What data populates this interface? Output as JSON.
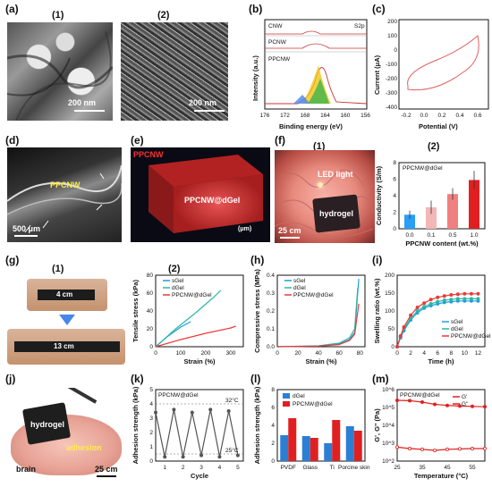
{
  "panels": {
    "a": {
      "label": "(a)",
      "sub1": "(1)",
      "sub2": "(2)",
      "scale1": "200 nm",
      "scale2": "200 nm"
    },
    "b": {
      "label": "(b)",
      "cnw": "CNW",
      "pcnw": "PCNW",
      "ppcnw": "PPCNW",
      "s2p": "S2p",
      "xlabel": "Binding energy (eV)",
      "ylabel": "Intensity (a.u.)",
      "xticks": [
        "176",
        "172",
        "168",
        "164",
        "160",
        "156"
      ]
    },
    "c": {
      "label": "(c)",
      "xlabel": "Potential (V)",
      "ylabel": "Current (μA)",
      "xticks": [
        "-0.2",
        "0.0",
        "0.2",
        "0.4",
        "0.6"
      ],
      "yticks": [
        "200",
        "100",
        "0",
        "-100",
        "-200",
        "-300",
        "-400"
      ]
    },
    "d": {
      "label": "(d)",
      "tag": "PPCNW",
      "scale": "500 μm"
    },
    "e": {
      "label": "(e)",
      "tag": "PPCNW",
      "center": "PPCNW@dGel",
      "axis_ticks": [
        "320",
        "280",
        "240",
        "200",
        "160",
        "120",
        "80",
        "40",
        "0"
      ],
      "unit": "(μm)"
    },
    "f": {
      "label": "(f)",
      "sub1": "(1)",
      "sub2": "(2)",
      "led": "LED light",
      "hydrogel": "hydrogel",
      "scale": "25 cm"
    },
    "g": {
      "label": "(g)",
      "sub1": "(1)",
      "sub2": "(2)",
      "len1": "4 cm",
      "len2": "13 cm"
    },
    "h": {
      "label": "(h)"
    },
    "i": {
      "label": "(i)"
    },
    "j": {
      "label": "(j)",
      "hydrogel": "hydrogel",
      "brain": "brain",
      "adhesion": "adhesion",
      "scale": "25 cm"
    },
    "k": {
      "label": "(k)",
      "tag": "PPCNW@dGel",
      "t1": "32°C",
      "t2": "25°C"
    },
    "l": {
      "label": "(l)"
    },
    "m": {
      "label": "(m)",
      "tag": "PPCNW@dGel"
    }
  },
  "colors": {
    "sGel": "#1f9ce0",
    "dGel": "#2cb7a3",
    "PPCNW@dGel": "#e83b3b",
    "red": "#e02020",
    "blue": "#2a7fd4"
  },
  "chart_data": [
    {
      "id": "f2",
      "type": "bar",
      "title": "PPCNW@dGel",
      "categories": [
        "0.0",
        "0.1",
        "0.5",
        "1.0"
      ],
      "values": [
        1.7,
        2.6,
        4.2,
        5.9
      ],
      "errors": [
        0.5,
        0.8,
        0.7,
        1.1
      ],
      "colors": [
        "#2a9df4",
        "#f4b6b6",
        "#f08080",
        "#e02020"
      ],
      "xlabel": "PPCNW content (wt.%)",
      "ylabel": "Conductivity (S/m)",
      "ylim": [
        0,
        8
      ],
      "yticks": [
        "0",
        "2",
        "4",
        "6",
        "8"
      ]
    },
    {
      "id": "g2",
      "type": "line",
      "xlabel": "Strain (%)",
      "ylabel": "Tensile stress (kPa)",
      "xlim": [
        0,
        350
      ],
      "ylim": [
        0,
        80
      ],
      "xticks": [
        "0",
        "100",
        "200",
        "300"
      ],
      "yticks": [
        "0",
        "20",
        "40",
        "60",
        "80"
      ],
      "series": [
        {
          "name": "sGel",
          "x": [
            0,
            50,
            100,
            140
          ],
          "y": [
            0,
            12,
            22,
            28
          ]
        },
        {
          "name": "dGel",
          "x": [
            0,
            80,
            160,
            230,
            260
          ],
          "y": [
            0,
            20,
            38,
            55,
            63
          ]
        },
        {
          "name": "PPCNW@dGel",
          "x": [
            0,
            100,
            200,
            300,
            320
          ],
          "y": [
            0,
            8,
            15,
            21,
            23
          ]
        }
      ]
    },
    {
      "id": "h",
      "type": "line",
      "xlabel": "Strain (%)",
      "ylabel": "Compressive stress (MPa)",
      "xlim": [
        0,
        85
      ],
      "ylim": [
        0,
        0.4
      ],
      "xticks": [
        "0",
        "20",
        "40",
        "60",
        "80"
      ],
      "yticks": [
        "0.0",
        "0.1",
        "0.2",
        "0.3",
        "0.4"
      ],
      "series": [
        {
          "name": "sGel",
          "x": [
            0,
            40,
            60,
            70,
            75,
            79
          ],
          "y": [
            0,
            0.004,
            0.015,
            0.04,
            0.08,
            0.38
          ]
        },
        {
          "name": "dGel",
          "x": [
            0,
            40,
            60,
            70,
            75,
            78
          ],
          "y": [
            0,
            0.005,
            0.02,
            0.05,
            0.1,
            0.33
          ]
        },
        {
          "name": "PPCNW@dGel",
          "x": [
            0,
            40,
            60,
            70,
            75,
            79
          ],
          "y": [
            0,
            0.003,
            0.012,
            0.035,
            0.07,
            0.24
          ]
        }
      ]
    },
    {
      "id": "i",
      "type": "line",
      "xlabel": "Time (h)",
      "ylabel": "Swelling ratio (wt.%)",
      "xlim": [
        0,
        13
      ],
      "ylim": [
        0,
        200
      ],
      "xticks": [
        "0",
        "2",
        "4",
        "6",
        "8",
        "10",
        "12"
      ],
      "yticks": [
        "0",
        "50",
        "100",
        "150",
        "200"
      ],
      "series": [
        {
          "name": "sGel",
          "x": [
            0,
            0.5,
            1,
            2,
            3,
            4,
            5,
            6,
            7,
            8,
            9,
            10,
            11,
            12
          ],
          "y": [
            0,
            25,
            45,
            75,
            95,
            108,
            115,
            120,
            124,
            126,
            128,
            128,
            128,
            128
          ]
        },
        {
          "name": "dGel",
          "x": [
            0,
            0.5,
            1,
            2,
            3,
            4,
            5,
            6,
            7,
            8,
            9,
            10,
            11,
            12
          ],
          "y": [
            0,
            28,
            50,
            80,
            100,
            112,
            120,
            126,
            130,
            132,
            134,
            134,
            134,
            134
          ]
        },
        {
          "name": "PPCNW@dGel",
          "x": [
            0,
            0.5,
            1,
            2,
            3,
            4,
            5,
            6,
            7,
            8,
            9,
            10,
            11,
            12
          ],
          "y": [
            0,
            30,
            55,
            88,
            110,
            122,
            132,
            138,
            142,
            145,
            147,
            148,
            148,
            148
          ]
        }
      ]
    },
    {
      "id": "k",
      "type": "line",
      "title": "PPCNW@dGel",
      "xlabel": "Cycle",
      "ylabel": "Adhesion strength (kPa)",
      "xlim": [
        0.5,
        5.3
      ],
      "ylim": [
        0,
        5
      ],
      "xticks": [
        "1",
        "2",
        "3",
        "4",
        "5"
      ],
      "yticks": [
        "0",
        "1",
        "2",
        "3",
        "4",
        "5"
      ],
      "series": [
        {
          "name": "adhesion",
          "x": [
            0.5,
            1,
            1.5,
            2,
            2.5,
            3,
            3.5,
            4,
            4.5,
            5
          ],
          "y": [
            3.4,
            0.3,
            3.6,
            0.3,
            3.4,
            0.4,
            3.6,
            0.3,
            3.5,
            0.4
          ]
        }
      ]
    },
    {
      "id": "l",
      "type": "bar",
      "xlabel": "",
      "ylabel": "Adhesion strength (kPa)",
      "ylim": [
        0,
        8
      ],
      "categories": [
        "PVDF",
        "Glass",
        "Ti",
        "Porcine skin"
      ],
      "yticks": [
        "0",
        "2",
        "4",
        "6",
        "8"
      ],
      "series": [
        {
          "name": "dGel",
          "values": [
            2.9,
            2.8,
            2.0,
            3.9
          ]
        },
        {
          "name": "PPCNW@dGel",
          "values": [
            4.8,
            2.6,
            4.6,
            3.4
          ]
        }
      ]
    },
    {
      "id": "m",
      "type": "line",
      "title": "PPCNW@dGel",
      "xlabel": "Temperature (°C)",
      "ylabel": "G', G'' (Pa)",
      "xlim": [
        25,
        60
      ],
      "xticks": [
        "25",
        "35",
        "45",
        "55"
      ],
      "yticks": [
        "10^2",
        "10^3",
        "10^4",
        "10^5",
        "10^6"
      ],
      "log_y": true,
      "series": [
        {
          "name": "G'",
          "x": [
            25,
            30,
            35,
            40,
            45,
            50,
            55,
            60
          ],
          "y": [
            250000,
            240000,
            200000,
            150000,
            130000,
            120000,
            115000,
            110000
          ]
        },
        {
          "name": "G''",
          "x": [
            25,
            30,
            35,
            40,
            45,
            50,
            55,
            60
          ],
          "y": [
            600,
            500,
            450,
            400,
            450,
            480,
            500,
            500
          ]
        }
      ]
    }
  ]
}
